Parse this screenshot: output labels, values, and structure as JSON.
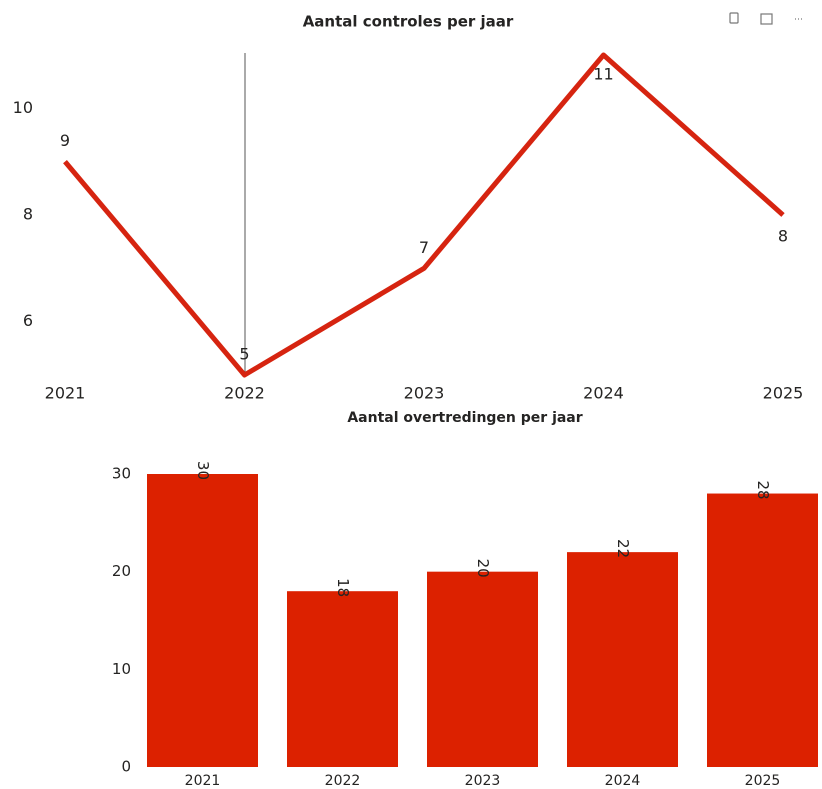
{
  "chart_data": [
    {
      "type": "line",
      "title": "Aantal controles per jaar",
      "categories": [
        "2021",
        "2022",
        "2023",
        "2024",
        "2025"
      ],
      "values": [
        9,
        5,
        7,
        11,
        8
      ],
      "color": "#d62410",
      "ylim": [
        5,
        11
      ],
      "yticks": [
        6,
        8,
        10
      ]
    },
    {
      "type": "bar",
      "title": "Aantal overtredingen per jaar",
      "categories": [
        "2021",
        "2022",
        "2023",
        "2024",
        "2025"
      ],
      "values": [
        30,
        18,
        20,
        22,
        28
      ],
      "color": "#dc2100",
      "ylim": [
        0,
        30
      ],
      "yticks": [
        0,
        10,
        20,
        30
      ]
    }
  ]
}
